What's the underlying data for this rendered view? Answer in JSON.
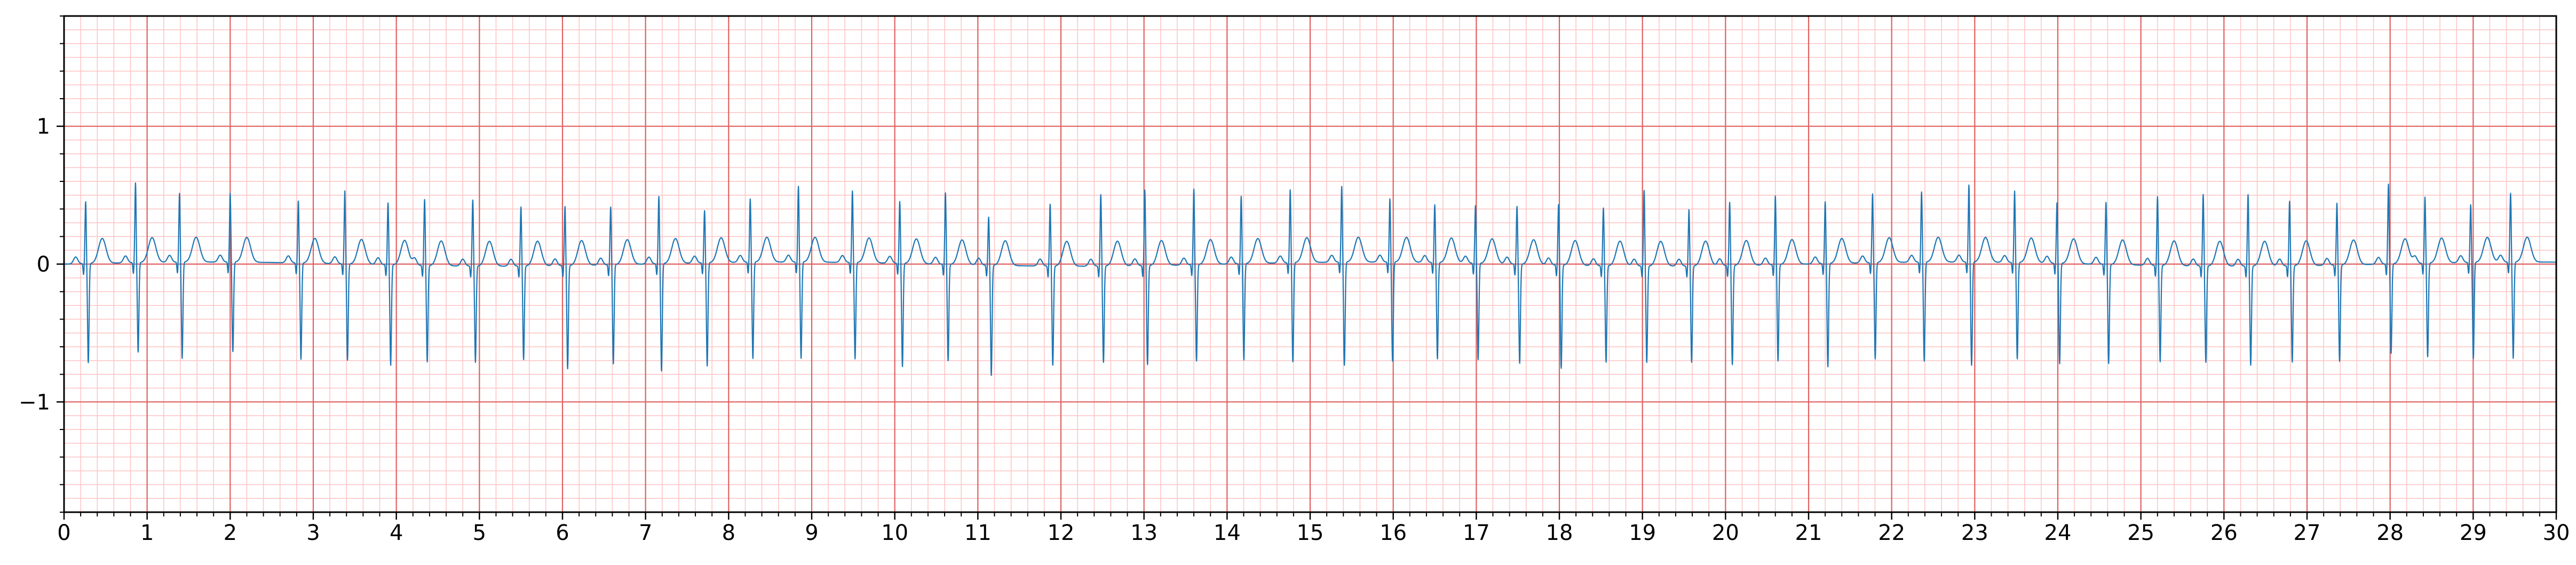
{
  "chart_data": {
    "type": "line",
    "title": "",
    "xlabel": "",
    "ylabel": "",
    "xlim": [
      0,
      30
    ],
    "ylim": [
      -1.8,
      1.8
    ],
    "x_ticks": [
      0,
      1,
      2,
      3,
      4,
      5,
      6,
      7,
      8,
      9,
      10,
      11,
      12,
      13,
      14,
      15,
      16,
      17,
      18,
      19,
      20,
      21,
      22,
      23,
      24,
      25,
      26,
      27,
      28,
      29,
      30
    ],
    "x_tick_labels": [
      "0",
      "1",
      "2",
      "3",
      "4",
      "5",
      "6",
      "7",
      "8",
      "9",
      "10",
      "11",
      "12",
      "13",
      "14",
      "15",
      "16",
      "17",
      "18",
      "19",
      "20",
      "21",
      "22",
      "23",
      "24",
      "25",
      "26",
      "27",
      "28",
      "29",
      "30"
    ],
    "y_ticks": [
      -1,
      0,
      1
    ],
    "y_tick_labels": [
      "−1",
      "0",
      "1"
    ],
    "grid": true,
    "grid_major": {
      "x_step": 1,
      "y_step": 1,
      "color": "#e06060"
    },
    "grid_minor": {
      "x_step": 0.2,
      "y_step": 0.1,
      "color": "#ffc2c2"
    },
    "line_color": "#1f77b4",
    "series": [
      {
        "beat_times": [
          0.26,
          0.86,
          1.39,
          2.0,
          2.82,
          3.38,
          3.9,
          4.34,
          4.92,
          5.5,
          6.03,
          6.58,
          7.16,
          7.71,
          8.26,
          8.84,
          9.49,
          10.06,
          10.61,
          11.13,
          11.87,
          12.48,
          13.01,
          13.6,
          14.17,
          14.76,
          15.38,
          15.96,
          16.5,
          16.99,
          17.49,
          17.99,
          18.53,
          19.02,
          19.56,
          20.05,
          20.6,
          21.2,
          21.77,
          22.36,
          22.93,
          23.48,
          23.99,
          24.58,
          25.2,
          25.75,
          26.29,
          26.79,
          27.36,
          27.98,
          28.42,
          28.97,
          29.45
        ],
        "r_amplitudes": [
          0.45,
          0.58,
          0.5,
          0.5,
          0.45,
          0.53,
          0.45,
          0.48,
          0.48,
          0.43,
          0.43,
          0.42,
          0.49,
          0.38,
          0.46,
          0.55,
          0.52,
          0.45,
          0.52,
          0.35,
          0.45,
          0.52,
          0.55,
          0.55,
          0.49,
          0.53,
          0.55,
          0.46,
          0.42,
          0.42,
          0.42,
          0.44,
          0.42,
          0.55,
          0.41,
          0.46,
          0.5,
          0.45,
          0.5,
          0.51,
          0.56,
          0.52,
          0.44,
          0.45,
          0.5,
          0.52,
          0.52,
          0.47,
          0.45,
          0.58,
          0.48,
          0.42,
          0.5
        ],
        "s_amplitudes": [
          -0.72,
          -0.65,
          -0.7,
          -0.65,
          -0.7,
          -0.7,
          -0.73,
          -0.7,
          -0.7,
          -0.68,
          -0.75,
          -0.72,
          -0.78,
          -0.75,
          -0.7,
          -0.7,
          -0.7,
          -0.75,
          -0.7,
          -0.8,
          -0.72,
          -0.7,
          -0.72,
          -0.7,
          -0.7,
          -0.72,
          -0.75,
          -0.72,
          -0.7,
          -0.7,
          -0.72,
          -0.75,
          -0.7,
          -0.7,
          -0.7,
          -0.72,
          -0.7,
          -0.75,
          -0.7,
          -0.72,
          -0.75,
          -0.7,
          -0.73,
          -0.72,
          -0.7,
          -0.7,
          -0.72,
          -0.7,
          -0.7,
          -0.65,
          -0.68,
          -0.7,
          -0.7
        ],
        "t_amplitude": 0.18,
        "p_amplitude": 0.05
      }
    ]
  }
}
